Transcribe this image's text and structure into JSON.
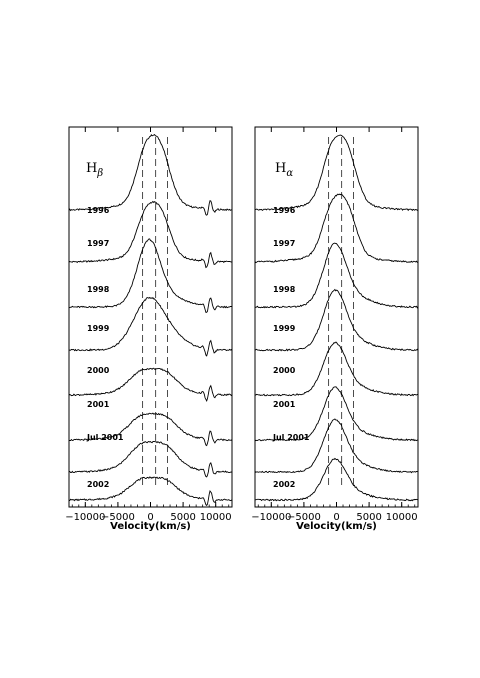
{
  "chart_data": [
    {
      "type": "line",
      "panel_label": "H",
      "panel_label_sub": "β",
      "xlabel": "Velocity(km/s)",
      "xlim": [
        -12500,
        12500
      ],
      "xticks": [
        -10000,
        -5000,
        0,
        5000,
        10000
      ],
      "xtick_labels": [
        "−10000",
        "−5000",
        "0",
        "5000",
        "10000"
      ],
      "dashed_lines_x": [
        -1200,
        800,
        2600
      ],
      "grid": false,
      "series": [
        {
          "name": "1996",
          "peak": 1.0,
          "shape": "double"
        },
        {
          "name": "1997",
          "peak": 0.8,
          "shape": "double"
        },
        {
          "name": "1998",
          "peak": 0.9,
          "shape": "single"
        },
        {
          "name": "1999",
          "peak": 0.7,
          "shape": "broad"
        },
        {
          "name": "2000",
          "peak": 0.35,
          "shape": "flat"
        },
        {
          "name": "2001",
          "peak": 0.35,
          "shape": "flat"
        },
        {
          "name": "Jul 2001",
          "peak": 0.4,
          "shape": "flat"
        },
        {
          "name": "2002",
          "peak": 0.3,
          "shape": "flat"
        }
      ]
    },
    {
      "type": "line",
      "panel_label": "H",
      "panel_label_sub": "α",
      "xlabel": "Velocity(km/s)",
      "xlim": [
        -12500,
        12500
      ],
      "xticks": [
        -10000,
        -5000,
        0,
        5000,
        10000
      ],
      "xtick_labels": [
        "−10000",
        "−5000",
        "0",
        "5000",
        "10000"
      ],
      "dashed_lines_x": [
        -1200,
        800,
        2600
      ],
      "grid": false,
      "series": [
        {
          "name": "1996",
          "peak": 1.0,
          "shape": "double"
        },
        {
          "name": "1997",
          "peak": 0.9,
          "shape": "double"
        },
        {
          "name": "1998",
          "peak": 0.85,
          "shape": "single"
        },
        {
          "name": "1999",
          "peak": 0.8,
          "shape": "single"
        },
        {
          "name": "2000",
          "peak": 0.7,
          "shape": "single"
        },
        {
          "name": "2001",
          "peak": 0.7,
          "shape": "single"
        },
        {
          "name": "Jul 2001",
          "peak": 0.7,
          "shape": "single"
        },
        {
          "name": "2002",
          "peak": 0.55,
          "shape": "single"
        }
      ]
    }
  ]
}
